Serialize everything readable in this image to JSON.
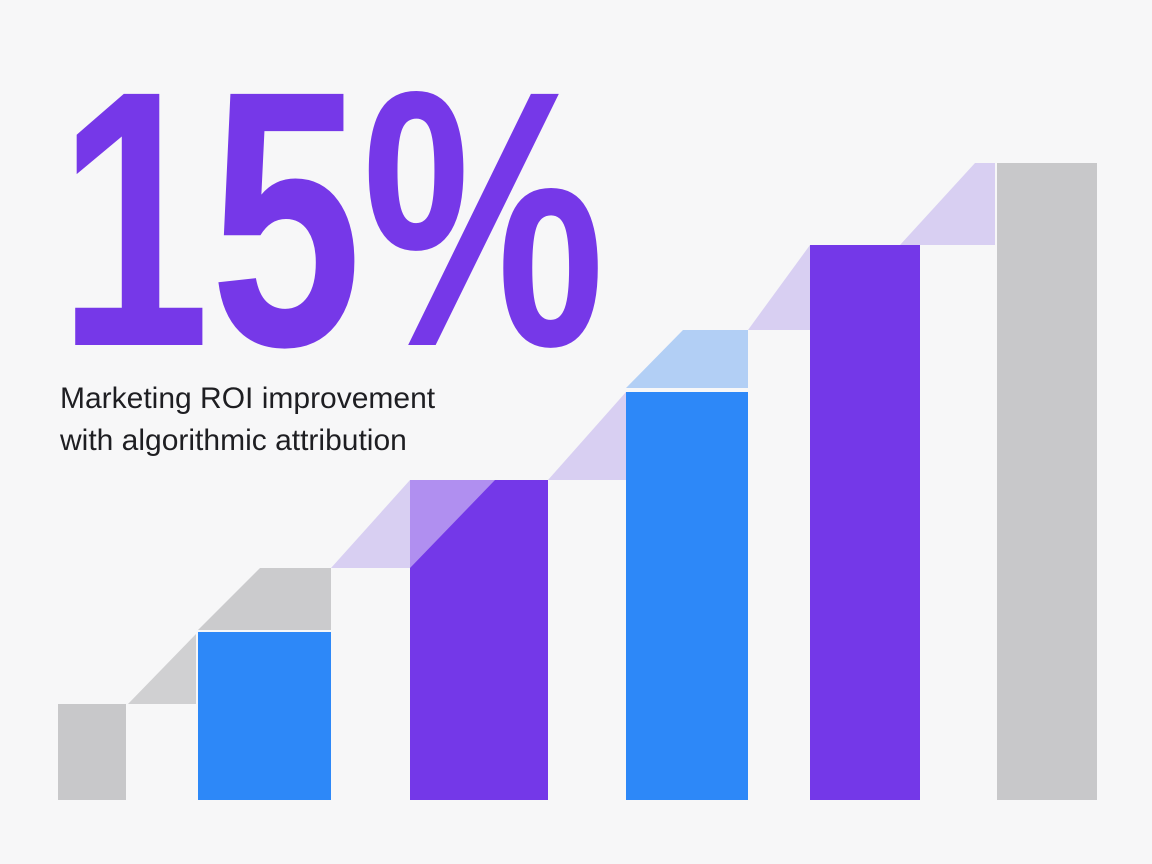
{
  "headline": "15%",
  "subtitle": {
    "line1": "Marketing ROI improvement",
    "line2": "with algorithmic attribution"
  }
}
